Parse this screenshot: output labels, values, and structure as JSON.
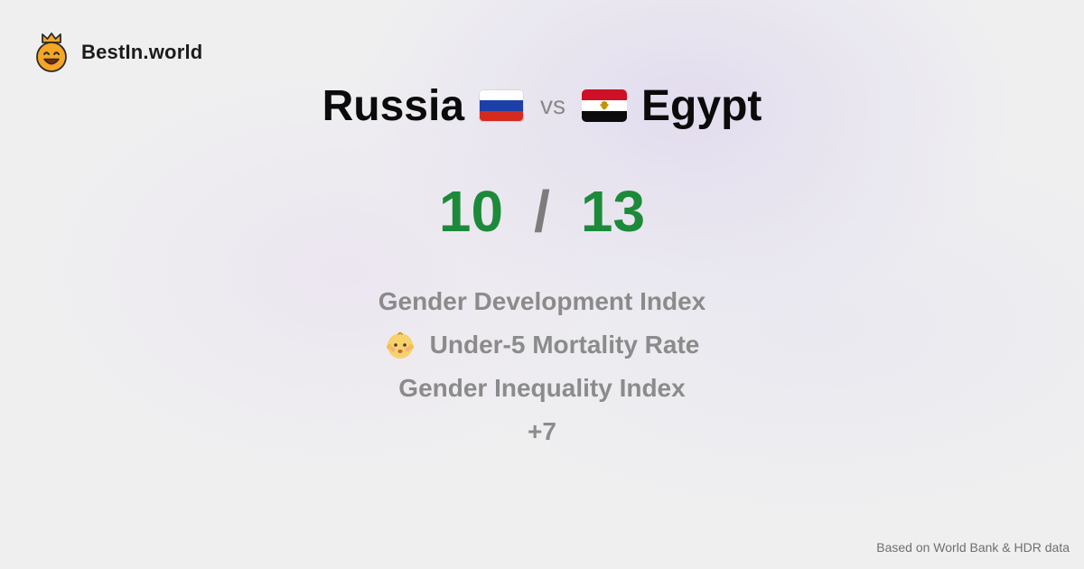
{
  "brand": {
    "name": "BestIn.world",
    "logo_icon": "smiling-crown-face-icon"
  },
  "comparison": {
    "country_a": "Russia",
    "country_a_flag": "russia-flag-icon",
    "vs_label": "vs",
    "country_b": "Egypt",
    "country_b_flag": "egypt-flag-icon"
  },
  "score": {
    "a": "10",
    "separator": "/",
    "b": "13",
    "color": "#1d8a3a"
  },
  "metrics": [
    {
      "label": "Gender Development Index"
    },
    {
      "label": "Under-5 Mortality Rate",
      "icon": "baby-face-icon"
    },
    {
      "label": "Gender Inequality Index"
    },
    {
      "label": "+7"
    }
  ],
  "footer": {
    "source": "Based on World Bank & HDR data"
  }
}
